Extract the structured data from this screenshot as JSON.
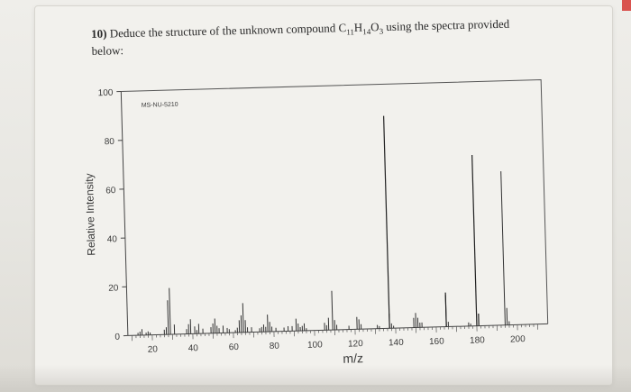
{
  "question": {
    "number": "10)",
    "text_before": "Deduce the structure of the unknown compound",
    "formula": "C11H14O3",
    "text_after": "using the spectra provided below:"
  },
  "colors": {
    "ink": "#333333",
    "accent_corner": "#d9534f"
  },
  "chart_data": {
    "type": "bar",
    "subtype": "mass-spectrum",
    "inset_label": "MS-NU-5210",
    "xlabel": "m/z",
    "ylabel": "Relative Intensity",
    "xlim": [
      8,
      215
    ],
    "ylim": [
      0,
      100
    ],
    "xticks": [
      20,
      40,
      60,
      80,
      100,
      120,
      140,
      160,
      180,
      200
    ],
    "yticks": [
      0,
      20,
      40,
      60,
      80,
      100
    ],
    "grid": false,
    "peaks": {
      "x": [
        13,
        14,
        15,
        17,
        18,
        19,
        26,
        27,
        28,
        29,
        31,
        37,
        38,
        39,
        41,
        42,
        43,
        45,
        49,
        50,
        51,
        52,
        53,
        55,
        57,
        58,
        61,
        62,
        63,
        64,
        65,
        66,
        67,
        69,
        73,
        74,
        75,
        76,
        77,
        78,
        79,
        81,
        85,
        87,
        89,
        91,
        92,
        93,
        94,
        95,
        96,
        105,
        106,
        107,
        109,
        110,
        111,
        117,
        121,
        122,
        123,
        131,
        132,
        137,
        138,
        139,
        149,
        150,
        151,
        152,
        153,
        165,
        166,
        176,
        177,
        194,
        195,
        196
      ],
      "values": [
        1,
        1.5,
        2.5,
        1,
        1.5,
        1,
        2,
        3,
        14,
        19,
        4,
        2,
        4,
        6,
        3,
        1.5,
        4,
        2,
        2.5,
        4,
        6,
        3,
        2,
        3,
        2,
        1.5,
        1,
        2,
        5,
        7,
        12,
        5,
        2,
        2,
        1.5,
        2,
        3,
        2,
        7,
        4,
        2,
        1.5,
        1.5,
        2,
        2,
        5,
        3,
        1.5,
        2,
        3,
        1,
        3,
        2,
        5,
        16,
        4,
        2,
        1.5,
        5,
        4,
        2,
        1.5,
        1,
        6,
        2,
        1,
        4,
        6,
        4,
        2,
        2,
        13,
        2,
        1.5,
        1,
        63,
        7,
        1.5
      ]
    },
    "major_peaks": {
      "x": [
        137,
        165,
        180,
        181
      ],
      "values": [
        87,
        14,
        70,
        5
      ]
    }
  }
}
